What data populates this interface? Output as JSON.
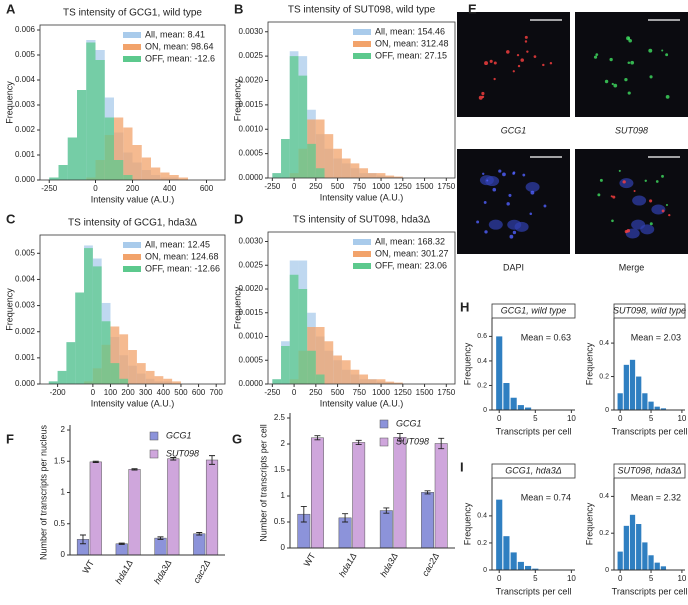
{
  "chart_data": [
    {
      "type": "histogram",
      "panel": "A",
      "title": "TS intensity of GCG1, wild type",
      "xlabel": "Intensity value (A.U.)",
      "ylabel": "Frequency",
      "xlim": [
        -300,
        700
      ],
      "xticks": [
        -250,
        0,
        200,
        400,
        600
      ],
      "ylim": [
        0,
        0.0062
      ],
      "yticks": [
        {
          "value": 0,
          "label": "0.000"
        },
        {
          "value": 0.001,
          "label": "0.001"
        },
        {
          "value": 0.002,
          "label": "0.002"
        },
        {
          "value": 0.003,
          "label": "0.003"
        },
        {
          "value": 0.004,
          "label": "0.004"
        },
        {
          "value": 0.005,
          "label": "0.005"
        },
        {
          "value": 0.006,
          "label": "0.006"
        }
      ],
      "bins": [
        -300,
        -250,
        -200,
        -150,
        -100,
        -50,
        0,
        50,
        100,
        150,
        200,
        250,
        300,
        350,
        400,
        450,
        500
      ],
      "series": [
        {
          "name": "All, mean: 8.41",
          "color": "#a9cbeb",
          "values": [
            0,
            0.0001,
            0.0006,
            0.0017,
            0.0036,
            0.0056,
            0.0052,
            0.0033,
            0.0019,
            0.0011,
            0.0007,
            0.0004,
            0.0002,
            0.0001,
            0.0001,
            0
          ]
        },
        {
          "name": "ON, mean: 98.64",
          "color": "#f2a36b",
          "values": [
            0,
            0,
            0,
            0,
            0,
            0.0001,
            0.0008,
            0.0018,
            0.0025,
            0.0021,
            0.0014,
            0.0009,
            0.0005,
            0.0003,
            0.0002,
            0.0001
          ]
        },
        {
          "name": "OFF, mean: -12.6",
          "color": "#5cc98d",
          "values": [
            0,
            0.0001,
            0.0006,
            0.0017,
            0.0036,
            0.0055,
            0.0048,
            0.0025,
            0.0008,
            0.0002,
            0,
            0,
            0,
            0,
            0,
            0
          ]
        }
      ]
    },
    {
      "type": "histogram",
      "panel": "B",
      "title": "TS intensity of SUT098, wild type",
      "xlabel": "Intensity value (A.U.)",
      "ylabel": "Frequency",
      "xlim": [
        -300,
        1850
      ],
      "xticks": [
        -250,
        0,
        250,
        500,
        750,
        1000,
        1250,
        1500,
        1750
      ],
      "ylim": [
        0,
        0.0032
      ],
      "yticks": [
        {
          "value": 0,
          "label": "0.0000"
        },
        {
          "value": 0.0005,
          "label": "0.0005"
        },
        {
          "value": 0.001,
          "label": "0.0010"
        },
        {
          "value": 0.0015,
          "label": "0.0015"
        },
        {
          "value": 0.002,
          "label": "0.0020"
        },
        {
          "value": 0.0025,
          "label": "0.0025"
        },
        {
          "value": 0.003,
          "label": "0.0030"
        }
      ],
      "bins": [
        -250,
        -150,
        -50,
        50,
        150,
        250,
        350,
        450,
        550,
        650,
        750,
        850,
        950,
        1050,
        1150,
        1250
      ],
      "series": [
        {
          "name": "All, mean: 154.46",
          "color": "#a9cbeb",
          "values": [
            0.0001,
            0.0008,
            0.0026,
            0.0025,
            0.0014,
            0.0009,
            0.0006,
            0.0004,
            0.0003,
            0.0002,
            0.0001,
            0.0001,
            5e-05,
            3e-05,
            2e-05
          ]
        },
        {
          "name": "ON, mean: 312.48",
          "color": "#f2a36b",
          "values": [
            0,
            0,
            0.0001,
            0.0006,
            0.0012,
            0.0012,
            0.0009,
            0.0006,
            0.0004,
            0.0003,
            0.0002,
            0.0001,
            0.0001,
            5e-05,
            3e-05
          ]
        },
        {
          "name": "OFF, mean: 27.15",
          "color": "#5cc98d",
          "values": [
            0.0001,
            0.0008,
            0.0025,
            0.0021,
            0.0007,
            0.0002,
            0,
            0,
            0,
            0,
            0,
            0,
            0,
            0,
            0
          ]
        }
      ]
    },
    {
      "type": "histogram",
      "panel": "C",
      "title": "TS intensity of GCG1, hda3Δ",
      "xlabel": "Intensity value (A.U.)",
      "ylabel": "Frequency",
      "xlim": [
        -300,
        750
      ],
      "xticks": [
        -200,
        0,
        100,
        200,
        300,
        400,
        500,
        600,
        700
      ],
      "ylim": [
        0,
        0.0057
      ],
      "yticks": [
        {
          "value": 0,
          "label": "0.000"
        },
        {
          "value": 0.001,
          "label": "0.001"
        },
        {
          "value": 0.002,
          "label": "0.002"
        },
        {
          "value": 0.003,
          "label": "0.003"
        },
        {
          "value": 0.004,
          "label": "0.004"
        },
        {
          "value": 0.005,
          "label": "0.005"
        }
      ],
      "bins": [
        -300,
        -250,
        -200,
        -150,
        -100,
        -50,
        0,
        50,
        100,
        150,
        200,
        250,
        300,
        350,
        400,
        450,
        500
      ],
      "series": [
        {
          "name": "All, mean: 12.45",
          "color": "#a9cbeb",
          "values": [
            0,
            0.0001,
            0.0005,
            0.0016,
            0.0035,
            0.0053,
            0.0048,
            0.0031,
            0.0018,
            0.0011,
            0.0007,
            0.0004,
            0.0002,
            0.0001,
            0.0001,
            0
          ]
        },
        {
          "name": "ON, mean: 124.68",
          "color": "#f2a36b",
          "values": [
            0,
            0,
            0,
            0,
            0,
            0.0001,
            0.0006,
            0.0015,
            0.0022,
            0.0019,
            0.0013,
            0.0008,
            0.0005,
            0.0003,
            0.0002,
            0.0001
          ]
        },
        {
          "name": "OFF, mean: -12.66",
          "color": "#5cc98d",
          "values": [
            0,
            0.0001,
            0.0005,
            0.0016,
            0.0035,
            0.0052,
            0.0045,
            0.0024,
            0.0008,
            0.0002,
            0,
            0,
            0,
            0,
            0,
            0
          ]
        }
      ]
    },
    {
      "type": "histogram",
      "panel": "D",
      "title": "TS intensity of SUT098, hda3Δ",
      "xlabel": "Intensity value (A.U.)",
      "ylabel": "Frequency",
      "xlim": [
        -300,
        1850
      ],
      "xticks": [
        -250,
        0,
        250,
        500,
        750,
        1000,
        1250,
        1500,
        1750
      ],
      "ylim": [
        0,
        0.0032
      ],
      "yticks": [
        {
          "value": 0,
          "label": "0.0000"
        },
        {
          "value": 0.0005,
          "label": "0.0005"
        },
        {
          "value": 0.001,
          "label": "0.0010"
        },
        {
          "value": 0.0015,
          "label": "0.0015"
        },
        {
          "value": 0.002,
          "label": "0.0020"
        },
        {
          "value": 0.0025,
          "label": "0.0025"
        },
        {
          "value": 0.003,
          "label": "0.0030"
        }
      ],
      "bins": [
        -250,
        -150,
        -50,
        50,
        150,
        250,
        350,
        450,
        550,
        650,
        750,
        850,
        950,
        1050,
        1150,
        1250
      ],
      "series": [
        {
          "name": "All, mean: 168.32",
          "color": "#a9cbeb",
          "values": [
            0.0001,
            0.0009,
            0.0026,
            0.0026,
            0.0015,
            0.001,
            0.0007,
            0.0005,
            0.0003,
            0.0002,
            0.0001,
            0.0001,
            5e-05,
            3e-05,
            2e-05
          ]
        },
        {
          "name": "ON, mean: 301.27",
          "color": "#f2a36b",
          "values": [
            0,
            0,
            0.0001,
            0.0007,
            0.0012,
            0.0012,
            0.0009,
            0.0006,
            0.0005,
            0.0003,
            0.0002,
            0.0001,
            0.0001,
            5e-05,
            3e-05
          ]
        },
        {
          "name": "OFF, mean: 23.06",
          "color": "#5cc98d",
          "values": [
            0.0001,
            0.0008,
            0.0023,
            0.002,
            0.0007,
            0.0002,
            0,
            0,
            0,
            0,
            0,
            0,
            0,
            0,
            0
          ]
        }
      ]
    },
    {
      "type": "image",
      "panel": "E",
      "images": [
        {
          "label": "GCG1"
        },
        {
          "label": "SUT098"
        },
        {
          "label": "DAPI"
        },
        {
          "label": "Merge"
        }
      ]
    },
    {
      "type": "bar",
      "panel": "F",
      "ylabel": "Number of transcripts per nucleus",
      "categories": [
        "WT",
        "hda1Δ",
        "hda3Δ",
        "cac2Δ"
      ],
      "ylim": [
        0,
        2
      ],
      "yticks": [
        0,
        0.5,
        1,
        1.5,
        2
      ],
      "series": [
        {
          "name": "GCG1",
          "color": "#8c93da",
          "values": [
            0.25,
            0.18,
            0.27,
            0.34
          ],
          "errors": [
            0.07,
            0.01,
            0.02,
            0.02
          ]
        },
        {
          "name": "SUT098",
          "color": "#cfa6dc",
          "values": [
            1.49,
            1.37,
            1.54,
            1.52
          ],
          "errors": [
            0.01,
            0.01,
            0.02,
            0.07
          ]
        }
      ]
    },
    {
      "type": "bar",
      "panel": "G",
      "ylabel": "Number of transcripts per cell",
      "categories": [
        "WT",
        "hda1Δ",
        "hda3Δ",
        "cac2Δ"
      ],
      "ylim": [
        0,
        2.5
      ],
      "yticks": [
        0,
        0.5,
        1,
        1.5,
        2,
        2.5
      ],
      "series": [
        {
          "name": "GCG1",
          "color": "#8c93da",
          "values": [
            0.65,
            0.58,
            0.72,
            1.07
          ],
          "errors": [
            0.15,
            0.08,
            0.05,
            0.03
          ]
        },
        {
          "name": "SUT098",
          "color": "#cfa6dc",
          "values": [
            2.12,
            2.03,
            2.13,
            2.01
          ],
          "errors": [
            0.04,
            0.04,
            0.07,
            0.1
          ]
        }
      ]
    },
    {
      "type": "column",
      "panel": "H",
      "title": "GCG1, wild type",
      "annotation": "Mean = 0.63",
      "xlabel": "Transcripts per cell",
      "ylabel": "Frequency",
      "x": [
        0,
        1,
        2,
        3,
        4
      ],
      "values": [
        0.6,
        0.22,
        0.1,
        0.04,
        0.02
      ],
      "color": "#2f7fc1",
      "xlim": [
        -1,
        10.5
      ],
      "xticks": [
        0,
        5,
        10
      ],
      "ylim": [
        0,
        0.75
      ],
      "yticks": [
        0,
        0.2,
        0.4,
        0.6
      ]
    },
    {
      "type": "column",
      "title": "SUT098, wild type",
      "annotation": "Mean = 2.03",
      "xlabel": "Transcripts per cell",
      "ylabel": "Frequency",
      "x": [
        0,
        1,
        2,
        3,
        4,
        5,
        6,
        7
      ],
      "values": [
        0.1,
        0.27,
        0.3,
        0.2,
        0.1,
        0.05,
        0.02,
        0.01
      ],
      "color": "#2f7fc1",
      "xlim": [
        -1,
        10.5
      ],
      "xticks": [
        0,
        5,
        10
      ],
      "ylim": [
        0,
        0.55
      ],
      "yticks": [
        0,
        0.2,
        0.4
      ]
    },
    {
      "type": "column",
      "panel": "I",
      "title": "GCG1, hda3Δ",
      "annotation": "Mean = 0.74",
      "xlabel": "Transcripts per cell",
      "ylabel": "Frequency",
      "x": [
        0,
        1,
        2,
        3,
        4,
        5
      ],
      "values": [
        0.52,
        0.25,
        0.13,
        0.06,
        0.03,
        0.01
      ],
      "color": "#2f7fc1",
      "xlim": [
        -1,
        10.5
      ],
      "xticks": [
        0,
        5,
        10
      ],
      "ylim": [
        0,
        0.68
      ],
      "yticks": [
        0,
        0.2,
        0.4
      ]
    },
    {
      "type": "column",
      "title": "SUT098, hda3Δ",
      "annotation": "Mean = 2.32",
      "xlabel": "Transcripts per cell",
      "ylabel": "Frequency",
      "x": [
        0,
        1,
        2,
        3,
        4,
        5,
        6,
        7
      ],
      "values": [
        0.1,
        0.24,
        0.3,
        0.25,
        0.15,
        0.08,
        0.04,
        0.02
      ],
      "color": "#2f7fc1",
      "xlim": [
        -1,
        10.5
      ],
      "xticks": [
        0,
        5,
        10
      ],
      "ylim": [
        0,
        0.5
      ],
      "yticks": [
        0,
        0.2,
        0.4
      ]
    }
  ]
}
